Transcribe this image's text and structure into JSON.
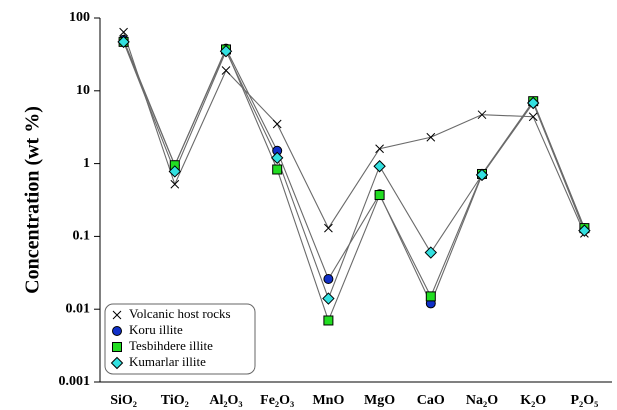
{
  "chart_data": {
    "type": "line",
    "y_label": "Concentration (wt %)",
    "categories": [
      "SiO₂",
      "TiO₂",
      "Al₂O₃",
      "Fe₂O₃",
      "MnO",
      "MgO",
      "CaO",
      "Na₂O",
      "K₂O",
      "P₂O₅"
    ],
    "log_scale": true,
    "ylim": [
      0.001,
      100
    ],
    "yticks": [
      0.001,
      0.01,
      0.1,
      1,
      10,
      100
    ],
    "legend": "bottom-left",
    "line_color": "#6a6a6a",
    "series": [
      {
        "name": "Volcanic host rocks",
        "marker": "x",
        "color": "#000000",
        "values": [
          64,
          0.52,
          19,
          3.5,
          0.13,
          1.6,
          2.3,
          4.7,
          4.4,
          0.11
        ]
      },
      {
        "name": "Koru illite",
        "marker": "circle",
        "color": "#1030c8",
        "values": [
          50,
          0.95,
          38,
          1.5,
          0.026,
          0.38,
          0.012,
          0.7,
          7.1,
          0.13
        ]
      },
      {
        "name": "Tesbihdere illite",
        "marker": "square",
        "color": "#22dd22",
        "values": [
          47,
          0.95,
          37,
          0.83,
          0.007,
          0.37,
          0.015,
          0.72,
          7.2,
          0.13
        ]
      },
      {
        "name": "Kumarlar illite",
        "marker": "diamond",
        "color": "#33e0e0",
        "values": [
          47,
          0.78,
          35,
          1.2,
          0.014,
          0.92,
          0.06,
          0.7,
          6.8,
          0.12
        ]
      }
    ]
  }
}
